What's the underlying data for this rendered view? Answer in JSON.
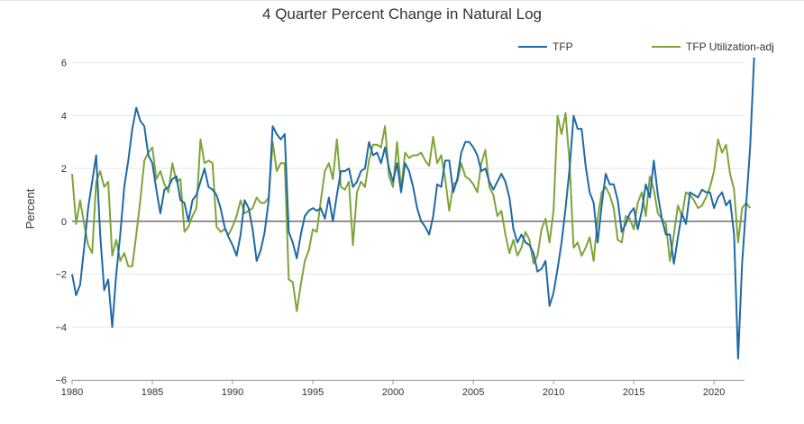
{
  "colors": {
    "tfp": "#1f6aa5",
    "tfp_util_adj": "#7ea43a",
    "zero_line": "#222222",
    "grid": "#e6e6e6",
    "axis": "#333333"
  },
  "chart_data": {
    "type": "line",
    "title": "4 Quarter Percent Change in Natural Log",
    "xlabel": "",
    "ylabel": "Percent",
    "xlim": [
      1980,
      2021.9
    ],
    "ylim": [
      -6,
      6.4
    ],
    "x_ticks": [
      1980,
      1985,
      1990,
      1995,
      2000,
      2005,
      2010,
      2015,
      2020
    ],
    "y_ticks": [
      -6,
      -4,
      -2,
      0,
      2,
      4,
      6
    ],
    "y_tick_labels": [
      "−6",
      "−4",
      "−2",
      "0",
      "2",
      "4",
      "6"
    ],
    "grid": "horizontal",
    "legend": "top-right",
    "x_start": 1980.0,
    "x_step": 0.25,
    "series": [
      {
        "name": "TFP",
        "color": "#1f6aa5",
        "values": [
          -2.0,
          -2.8,
          -2.4,
          -1.0,
          0.5,
          1.5,
          2.5,
          -0.5,
          -2.6,
          -2.2,
          -4.0,
          -2.0,
          -0.5,
          1.3,
          2.3,
          3.5,
          4.3,
          3.8,
          3.6,
          2.5,
          2.2,
          1.2,
          0.3,
          1.2,
          1.3,
          1.6,
          1.7,
          0.8,
          0.7,
          0.0,
          0.8,
          1.0,
          1.5,
          2.0,
          1.3,
          1.2,
          1.0,
          0.5,
          -0.2,
          -0.6,
          -0.9,
          -1.3,
          -0.5,
          0.8,
          0.5,
          -0.3,
          -1.5,
          -1.1,
          -0.4,
          0.8,
          3.6,
          3.3,
          3.1,
          3.3,
          -0.4,
          -0.8,
          -1.4,
          -0.5,
          0.2,
          0.4,
          0.5,
          0.4,
          0.5,
          0.1,
          0.9,
          0.0,
          1.0,
          1.9,
          1.9,
          2.0,
          1.3,
          1.5,
          1.9,
          2.0,
          3.0,
          2.5,
          2.6,
          2.2,
          2.8,
          2.0,
          1.5,
          2.2,
          1.1,
          2.2,
          1.9,
          1.3,
          0.5,
          0.0,
          -0.2,
          -0.5,
          0.2,
          1.4,
          1.3,
          2.3,
          2.3,
          1.1,
          1.6,
          2.6,
          3.0,
          3.0,
          2.8,
          2.5,
          1.9,
          2.0,
          1.5,
          1.2,
          1.5,
          1.8,
          1.5,
          0.9,
          -0.3,
          -0.8,
          -0.5,
          -0.8,
          -0.9,
          -1.2,
          -1.9,
          -1.8,
          -1.5,
          -3.2,
          -2.7,
          -1.8,
          -0.8,
          0.5,
          2.0,
          4.0,
          3.5,
          3.5,
          2.1,
          1.1,
          0.7,
          -0.8,
          0.6,
          1.8,
          1.4,
          1.4,
          0.8,
          -0.4,
          -0.1,
          0.3,
          0.5,
          -0.3,
          0.4,
          1.4,
          0.9,
          2.3,
          1.0,
          0.1,
          -0.5,
          -0.5,
          -1.6,
          -0.6,
          0.3,
          -0.1,
          1.1,
          1.0,
          0.9,
          1.2,
          1.1,
          1.1,
          0.5,
          0.9,
          1.1,
          0.6,
          0.8,
          -0.5,
          -5.2,
          -1.6,
          0.6,
          2.8,
          6.2
        ]
      },
      {
        "name": "TFP Utilization-adj",
        "color": "#7ea43a",
        "values": [
          1.8,
          -0.1,
          0.8,
          -0.1,
          -0.9,
          -1.2,
          1.5,
          1.9,
          1.3,
          1.5,
          -1.3,
          -0.7,
          -1.5,
          -1.2,
          -1.7,
          -1.7,
          -0.5,
          0.8,
          2.3,
          2.6,
          2.8,
          1.6,
          1.9,
          1.4,
          1.1,
          2.2,
          1.5,
          1.6,
          -0.4,
          -0.2,
          0.2,
          0.5,
          3.1,
          2.2,
          2.3,
          2.2,
          -0.2,
          -0.4,
          -0.3,
          -0.5,
          -0.2,
          0.2,
          0.8,
          0.3,
          0.4,
          0.5,
          0.9,
          0.7,
          0.7,
          0.9,
          3.0,
          1.9,
          2.2,
          2.2,
          -2.2,
          -2.3,
          -3.4,
          -2.4,
          -1.5,
          -1.1,
          -0.3,
          -0.4,
          0.8,
          1.9,
          2.2,
          1.6,
          3.1,
          1.3,
          1.2,
          1.5,
          -0.9,
          1.1,
          1.5,
          1.3,
          2.3,
          2.9,
          2.9,
          2.8,
          3.6,
          1.7,
          1.3,
          3.0,
          1.2,
          2.6,
          2.4,
          2.5,
          2.5,
          2.6,
          2.3,
          2.1,
          3.2,
          2.2,
          2.5,
          1.6,
          0.4,
          1.4,
          1.5,
          2.2,
          1.7,
          1.6,
          1.4,
          1.1,
          2.2,
          2.7,
          1.3,
          1.0,
          0.2,
          0.4,
          -0.5,
          -1.2,
          -0.7,
          -1.3,
          -1.0,
          -0.4,
          -0.7,
          -1.6,
          -1.3,
          -0.3,
          0.1,
          -0.8,
          0.4,
          4.0,
          3.3,
          4.1,
          2.2,
          -1.0,
          -0.8,
          -1.3,
          -1.0,
          -0.6,
          -1.5,
          0.1,
          1.1,
          1.3,
          1.0,
          0.5,
          -0.7,
          -0.8,
          0.2,
          0.1,
          -0.3,
          0.7,
          1.1,
          0.2,
          1.7,
          1.2,
          0.3,
          0.1,
          -0.1,
          -1.5,
          -0.5,
          0.6,
          0.2,
          1.1,
          1.0,
          0.8,
          0.5,
          0.6,
          0.9,
          1.3,
          1.9,
          3.1,
          2.6,
          2.9,
          1.8,
          1.2,
          -0.8,
          0.5,
          0.7,
          0.5
        ]
      }
    ]
  }
}
